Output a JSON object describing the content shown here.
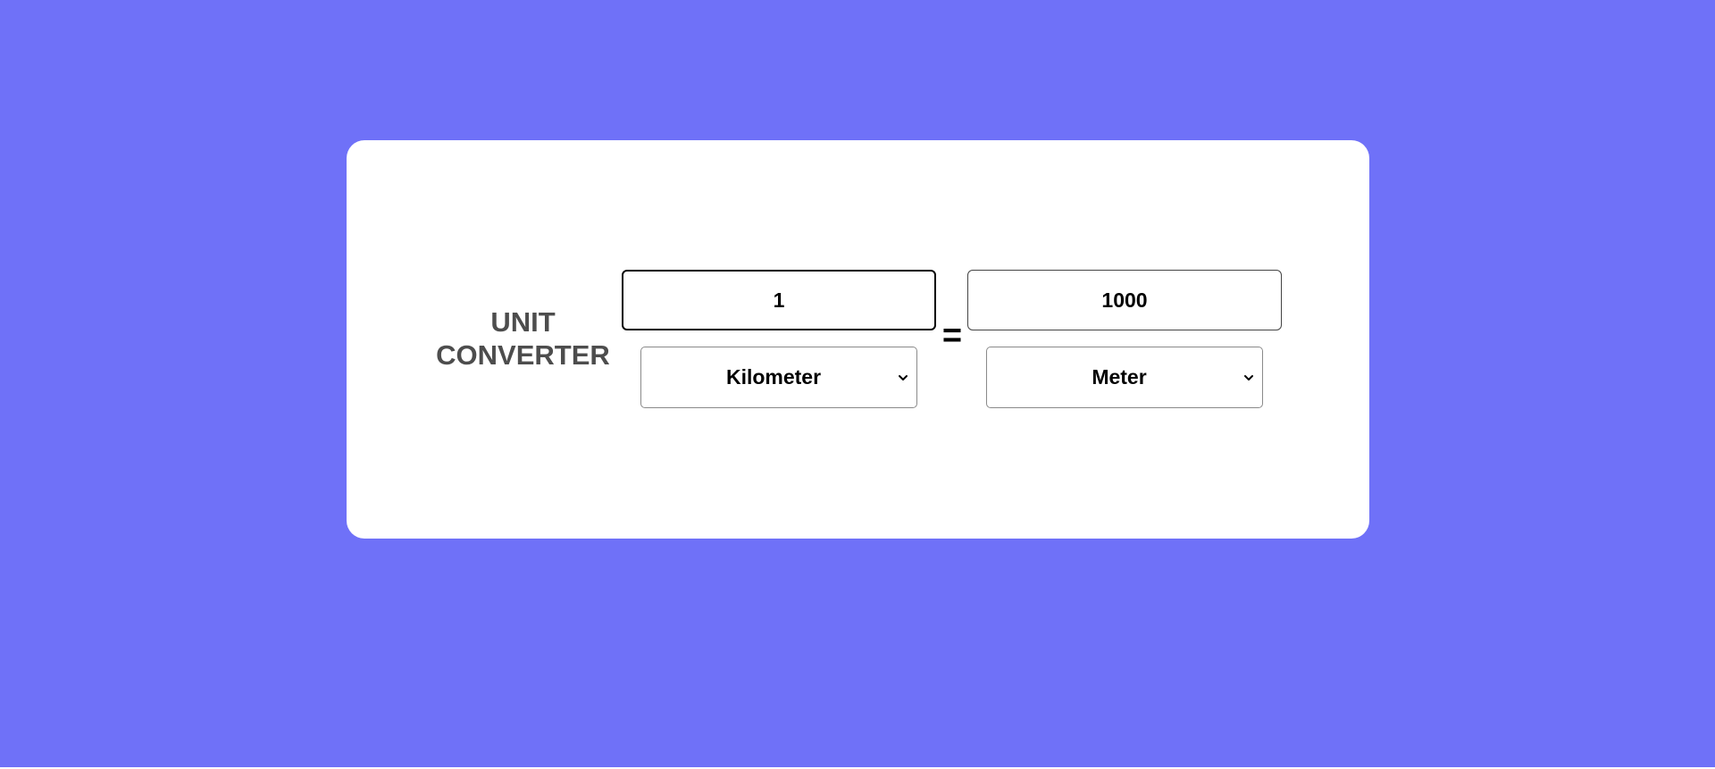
{
  "colors": {
    "background": "#6f71f8",
    "card": "#ffffff",
    "title": "#4d4d4d"
  },
  "title": {
    "line1": "UNIT",
    "line2": "CONVERTER"
  },
  "from": {
    "value": "1",
    "unit": "Kilometer"
  },
  "equals": "=",
  "to": {
    "value": "1000",
    "unit": "Meter"
  },
  "icons": {
    "dropdown": "chevron-down-icon"
  }
}
